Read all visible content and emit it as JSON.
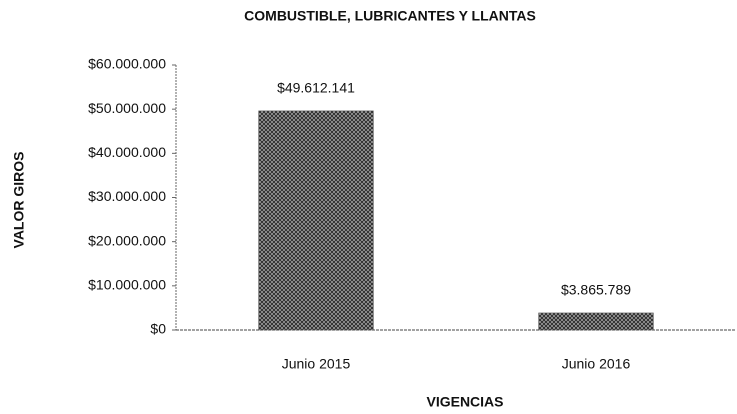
{
  "chart_data": {
    "type": "bar",
    "title": "COMBUSTIBLE, LUBRICANTES Y LLANTAS",
    "y_label": "VALOR GIROS",
    "x_label": "VIGENCIAS",
    "categories": [
      "Junio 2015",
      "Junio 2016"
    ],
    "values": [
      49612141,
      3865789
    ],
    "value_labels": [
      "$49.612.141",
      "$3.865.789"
    ],
    "color": "#555555",
    "ylim": [
      0,
      60000000
    ],
    "yticks": [
      {
        "value": 0,
        "label": "$0"
      },
      {
        "value": 10000000,
        "label": "$10.000.000"
      },
      {
        "value": 20000000,
        "label": "$20.000.000"
      },
      {
        "value": 30000000,
        "label": "$30.000.000"
      },
      {
        "value": 40000000,
        "label": "$40.000.000"
      },
      {
        "value": 50000000,
        "label": "$50.000.000"
      },
      {
        "value": 60000000,
        "label": "$60.000.000"
      }
    ],
    "grid": false
  }
}
